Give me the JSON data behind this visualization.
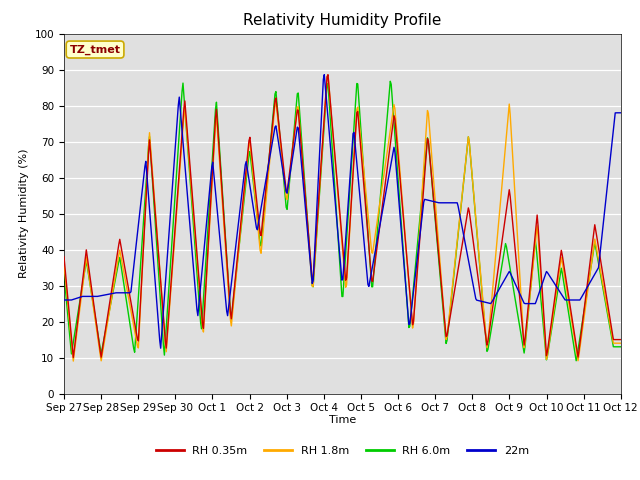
{
  "title": "Relativity Humidity Profile",
  "xlabel": "Time",
  "ylabel": "Relativity Humidity (%)",
  "annotation": "TZ_tmet",
  "ylim": [
    0,
    100
  ],
  "legend": [
    "RH 0.35m",
    "RH 1.8m",
    "RH 6.0m",
    "22m"
  ],
  "colors": [
    "#cc0000",
    "#ffaa00",
    "#00cc00",
    "#0000cc"
  ],
  "bg_color": "#e0e0e0",
  "tick_labels": [
    "Sep 27",
    "Sep 28",
    "Sep 29",
    "Sep 30",
    "Oct 1",
    "Oct 2",
    "Oct 3",
    "Oct 4",
    "Oct 5",
    "Oct 6",
    "Oct 7",
    "Oct 8",
    "Oct 9",
    "Oct 10",
    "Oct 11",
    "Oct 12"
  ],
  "yticks": [
    0,
    10,
    20,
    30,
    40,
    50,
    60,
    70,
    80,
    90,
    100
  ],
  "num_points": 600,
  "lw": 1.0,
  "title_fontsize": 11,
  "label_fontsize": 8,
  "tick_fontsize": 7.5,
  "legend_fontsize": 8
}
